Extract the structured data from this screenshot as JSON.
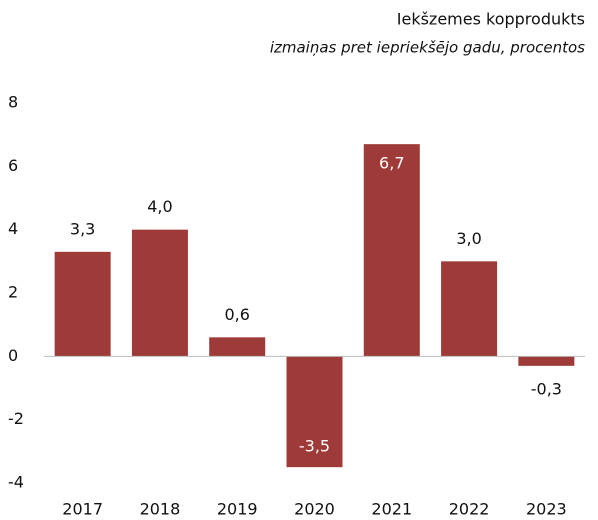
{
  "chart_data": {
    "type": "bar",
    "title": "Iekšzemes kopprodukts",
    "subtitle": "izmaiņas pret iepriekšējo gadu, procentos",
    "categories": [
      "2017",
      "2018",
      "2019",
      "2020",
      "2021",
      "2022",
      "2023"
    ],
    "values": [
      3.3,
      4.0,
      0.6,
      -3.5,
      6.7,
      3.0,
      -0.3
    ],
    "value_labels": [
      "3,3",
      "4,0",
      "0,6",
      "-3,5",
      "6,7",
      "3,0",
      "-0,3"
    ],
    "color": "#9e3a38",
    "ylim": [
      -4,
      8
    ],
    "yticks": [
      -4,
      -2,
      0,
      2,
      4,
      6,
      8
    ],
    "grid": false
  }
}
